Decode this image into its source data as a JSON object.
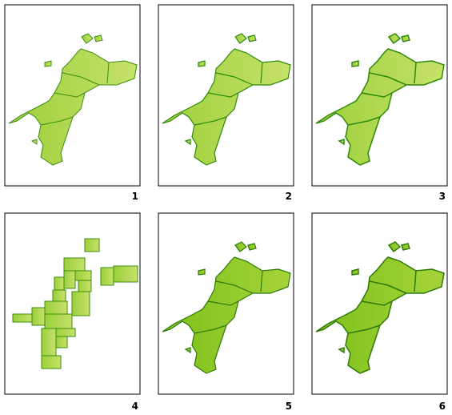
{
  "panels": [
    {
      "label": "1"
    },
    {
      "label": "2"
    },
    {
      "label": "3"
    },
    {
      "label": "4"
    },
    {
      "label": "5"
    },
    {
      "label": "6"
    }
  ]
}
